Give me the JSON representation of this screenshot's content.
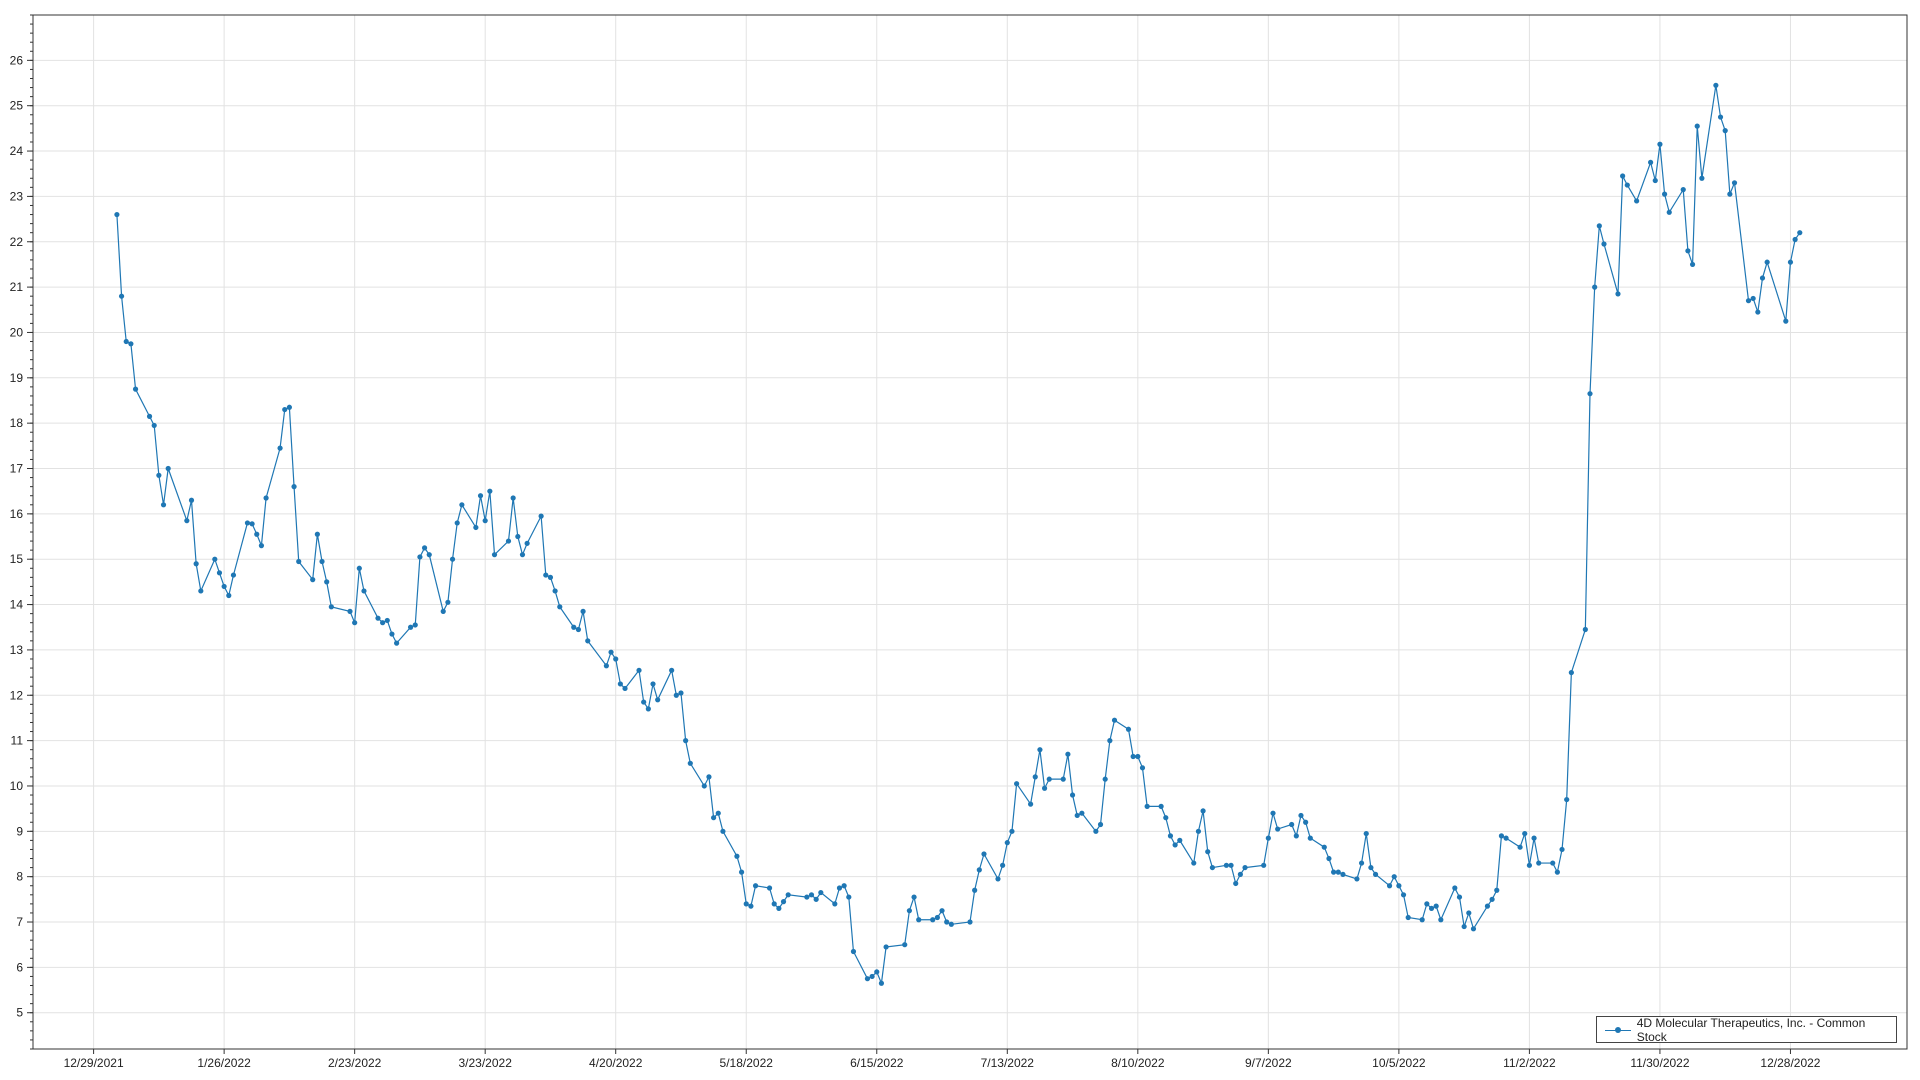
{
  "chart_data": {
    "type": "line",
    "title": "",
    "xlabel": "",
    "ylabel": "",
    "ylim": [
      4.2,
      27
    ],
    "yticks": [
      5,
      6,
      7,
      8,
      9,
      10,
      11,
      12,
      13,
      14,
      15,
      16,
      17,
      18,
      19,
      20,
      21,
      22,
      23,
      24,
      25,
      26
    ],
    "xlim": [
      "2021-12-16",
      "2023-01-22"
    ],
    "xtick_labels": [
      "12/29/2021",
      "1/26/2022",
      "2/23/2022",
      "3/23/2022",
      "4/20/2022",
      "5/18/2022",
      "6/15/2022",
      "7/13/2022",
      "8/10/2022",
      "9/7/2022",
      "10/5/2022",
      "11/2/2022",
      "11/30/2022",
      "12/28/2022"
    ],
    "grid": true,
    "legend_placement": "bottom-right",
    "color": "#1f77b4",
    "series": [
      {
        "name": "4D Molecular Therapeutics, Inc. - Common Stock",
        "points": [
          [
            "2022-01-03",
            22.6
          ],
          [
            "2022-01-04",
            20.8
          ],
          [
            "2022-01-05",
            19.8
          ],
          [
            "2022-01-06",
            19.75
          ],
          [
            "2022-01-07",
            18.75
          ],
          [
            "2022-01-10",
            18.15
          ],
          [
            "2022-01-11",
            17.95
          ],
          [
            "2022-01-12",
            16.85
          ],
          [
            "2022-01-13",
            16.2
          ],
          [
            "2022-01-14",
            17.0
          ],
          [
            "2022-01-18",
            15.85
          ],
          [
            "2022-01-19",
            16.3
          ],
          [
            "2022-01-20",
            14.9
          ],
          [
            "2022-01-21",
            14.3
          ],
          [
            "2022-01-24",
            15.0
          ],
          [
            "2022-01-25",
            14.7
          ],
          [
            "2022-01-26",
            14.4
          ],
          [
            "2022-01-27",
            14.2
          ],
          [
            "2022-01-28",
            14.65
          ],
          [
            "2022-01-31",
            15.8
          ],
          [
            "2022-02-01",
            15.78
          ],
          [
            "2022-02-02",
            15.55
          ],
          [
            "2022-02-03",
            15.3
          ],
          [
            "2022-02-04",
            16.35
          ],
          [
            "2022-02-07",
            17.45
          ],
          [
            "2022-02-08",
            18.3
          ],
          [
            "2022-02-09",
            18.35
          ],
          [
            "2022-02-10",
            16.6
          ],
          [
            "2022-02-11",
            14.95
          ],
          [
            "2022-02-14",
            14.55
          ],
          [
            "2022-02-15",
            15.55
          ],
          [
            "2022-02-16",
            14.95
          ],
          [
            "2022-02-17",
            14.5
          ],
          [
            "2022-02-18",
            13.95
          ],
          [
            "2022-02-22",
            13.85
          ],
          [
            "2022-02-23",
            13.6
          ],
          [
            "2022-02-24",
            14.8
          ],
          [
            "2022-02-25",
            14.3
          ],
          [
            "2022-02-28",
            13.7
          ],
          [
            "2022-03-01",
            13.6
          ],
          [
            "2022-03-02",
            13.65
          ],
          [
            "2022-03-03",
            13.35
          ],
          [
            "2022-03-04",
            13.15
          ],
          [
            "2022-03-07",
            13.5
          ],
          [
            "2022-03-08",
            13.55
          ],
          [
            "2022-03-09",
            15.05
          ],
          [
            "2022-03-10",
            15.25
          ],
          [
            "2022-03-11",
            15.1
          ],
          [
            "2022-03-14",
            13.85
          ],
          [
            "2022-03-15",
            14.05
          ],
          [
            "2022-03-16",
            15.0
          ],
          [
            "2022-03-17",
            15.8
          ],
          [
            "2022-03-18",
            16.2
          ],
          [
            "2022-03-21",
            15.7
          ],
          [
            "2022-03-22",
            16.4
          ],
          [
            "2022-03-23",
            15.85
          ],
          [
            "2022-03-24",
            16.5
          ],
          [
            "2022-03-25",
            15.1
          ],
          [
            "2022-03-28",
            15.4
          ],
          [
            "2022-03-29",
            16.35
          ],
          [
            "2022-03-30",
            15.5
          ],
          [
            "2022-03-31",
            15.1
          ],
          [
            "2022-04-01",
            15.35
          ],
          [
            "2022-04-04",
            15.95
          ],
          [
            "2022-04-05",
            14.65
          ],
          [
            "2022-04-06",
            14.6
          ],
          [
            "2022-04-07",
            14.3
          ],
          [
            "2022-04-08",
            13.95
          ],
          [
            "2022-04-11",
            13.5
          ],
          [
            "2022-04-12",
            13.45
          ],
          [
            "2022-04-13",
            13.85
          ],
          [
            "2022-04-14",
            13.2
          ],
          [
            "2022-04-18",
            12.65
          ],
          [
            "2022-04-19",
            12.95
          ],
          [
            "2022-04-20",
            12.8
          ],
          [
            "2022-04-21",
            12.25
          ],
          [
            "2022-04-22",
            12.15
          ],
          [
            "2022-04-25",
            12.55
          ],
          [
            "2022-04-26",
            11.85
          ],
          [
            "2022-04-27",
            11.7
          ],
          [
            "2022-04-28",
            12.25
          ],
          [
            "2022-04-29",
            11.9
          ],
          [
            "2022-05-02",
            12.55
          ],
          [
            "2022-05-03",
            12.0
          ],
          [
            "2022-05-04",
            12.05
          ],
          [
            "2022-05-05",
            11.0
          ],
          [
            "2022-05-06",
            10.5
          ],
          [
            "2022-05-09",
            10.0
          ],
          [
            "2022-05-10",
            10.2
          ],
          [
            "2022-05-11",
            9.3
          ],
          [
            "2022-05-12",
            9.4
          ],
          [
            "2022-05-13",
            9.0
          ],
          [
            "2022-05-16",
            8.45
          ],
          [
            "2022-05-17",
            8.1
          ],
          [
            "2022-05-18",
            7.4
          ],
          [
            "2022-05-19",
            7.35
          ],
          [
            "2022-05-20",
            7.8
          ],
          [
            "2022-05-23",
            7.75
          ],
          [
            "2022-05-24",
            7.4
          ],
          [
            "2022-05-25",
            7.3
          ],
          [
            "2022-05-26",
            7.45
          ],
          [
            "2022-05-27",
            7.6
          ],
          [
            "2022-05-31",
            7.55
          ],
          [
            "2022-06-01",
            7.6
          ],
          [
            "2022-06-02",
            7.5
          ],
          [
            "2022-06-03",
            7.65
          ],
          [
            "2022-06-06",
            7.4
          ],
          [
            "2022-06-07",
            7.75
          ],
          [
            "2022-06-08",
            7.8
          ],
          [
            "2022-06-09",
            7.55
          ],
          [
            "2022-06-10",
            6.35
          ],
          [
            "2022-06-13",
            5.75
          ],
          [
            "2022-06-14",
            5.8
          ],
          [
            "2022-06-15",
            5.9
          ],
          [
            "2022-06-16",
            5.65
          ],
          [
            "2022-06-17",
            6.45
          ],
          [
            "2022-06-21",
            6.5
          ],
          [
            "2022-06-22",
            7.25
          ],
          [
            "2022-06-23",
            7.55
          ],
          [
            "2022-06-24",
            7.05
          ],
          [
            "2022-06-27",
            7.05
          ],
          [
            "2022-06-28",
            7.1
          ],
          [
            "2022-06-29",
            7.25
          ],
          [
            "2022-06-30",
            7.0
          ],
          [
            "2022-07-01",
            6.95
          ],
          [
            "2022-07-05",
            7.0
          ],
          [
            "2022-07-06",
            7.7
          ],
          [
            "2022-07-07",
            8.15
          ],
          [
            "2022-07-08",
            8.5
          ],
          [
            "2022-07-11",
            7.95
          ],
          [
            "2022-07-12",
            8.25
          ],
          [
            "2022-07-13",
            8.75
          ],
          [
            "2022-07-14",
            9.0
          ],
          [
            "2022-07-15",
            10.05
          ],
          [
            "2022-07-18",
            9.6
          ],
          [
            "2022-07-19",
            10.2
          ],
          [
            "2022-07-20",
            10.8
          ],
          [
            "2022-07-21",
            9.95
          ],
          [
            "2022-07-22",
            10.15
          ],
          [
            "2022-07-25",
            10.15
          ],
          [
            "2022-07-26",
            10.7
          ],
          [
            "2022-07-27",
            9.8
          ],
          [
            "2022-07-28",
            9.35
          ],
          [
            "2022-07-29",
            9.4
          ],
          [
            "2022-08-01",
            9.0
          ],
          [
            "2022-08-02",
            9.15
          ],
          [
            "2022-08-03",
            10.15
          ],
          [
            "2022-08-04",
            11.0
          ],
          [
            "2022-08-05",
            11.45
          ],
          [
            "2022-08-08",
            11.25
          ],
          [
            "2022-08-09",
            10.65
          ],
          [
            "2022-08-10",
            10.65
          ],
          [
            "2022-08-11",
            10.4
          ],
          [
            "2022-08-12",
            9.55
          ],
          [
            "2022-08-15",
            9.55
          ],
          [
            "2022-08-16",
            9.3
          ],
          [
            "2022-08-17",
            8.9
          ],
          [
            "2022-08-18",
            8.7
          ],
          [
            "2022-08-19",
            8.8
          ],
          [
            "2022-08-22",
            8.3
          ],
          [
            "2022-08-23",
            9.0
          ],
          [
            "2022-08-24",
            9.45
          ],
          [
            "2022-08-25",
            8.55
          ],
          [
            "2022-08-26",
            8.2
          ],
          [
            "2022-08-29",
            8.25
          ],
          [
            "2022-08-30",
            8.25
          ],
          [
            "2022-08-31",
            7.85
          ],
          [
            "2022-09-01",
            8.05
          ],
          [
            "2022-09-02",
            8.2
          ],
          [
            "2022-09-06",
            8.25
          ],
          [
            "2022-09-07",
            8.85
          ],
          [
            "2022-09-08",
            9.4
          ],
          [
            "2022-09-09",
            9.05
          ],
          [
            "2022-09-12",
            9.15
          ],
          [
            "2022-09-13",
            8.9
          ],
          [
            "2022-09-14",
            9.35
          ],
          [
            "2022-09-15",
            9.2
          ],
          [
            "2022-09-16",
            8.85
          ],
          [
            "2022-09-19",
            8.65
          ],
          [
            "2022-09-20",
            8.4
          ],
          [
            "2022-09-21",
            8.1
          ],
          [
            "2022-09-22",
            8.1
          ],
          [
            "2022-09-23",
            8.05
          ],
          [
            "2022-09-26",
            7.95
          ],
          [
            "2022-09-27",
            8.3
          ],
          [
            "2022-09-28",
            8.95
          ],
          [
            "2022-09-29",
            8.2
          ],
          [
            "2022-09-30",
            8.05
          ],
          [
            "2022-10-03",
            7.8
          ],
          [
            "2022-10-04",
            8.0
          ],
          [
            "2022-10-05",
            7.8
          ],
          [
            "2022-10-06",
            7.6
          ],
          [
            "2022-10-07",
            7.1
          ],
          [
            "2022-10-10",
            7.05
          ],
          [
            "2022-10-11",
            7.4
          ],
          [
            "2022-10-12",
            7.3
          ],
          [
            "2022-10-13",
            7.35
          ],
          [
            "2022-10-14",
            7.05
          ],
          [
            "2022-10-17",
            7.75
          ],
          [
            "2022-10-18",
            7.55
          ],
          [
            "2022-10-19",
            6.9
          ],
          [
            "2022-10-20",
            7.2
          ],
          [
            "2022-10-21",
            6.85
          ],
          [
            "2022-10-24",
            7.35
          ],
          [
            "2022-10-25",
            7.5
          ],
          [
            "2022-10-26",
            7.7
          ],
          [
            "2022-10-27",
            8.9
          ],
          [
            "2022-10-28",
            8.85
          ],
          [
            "2022-10-31",
            8.65
          ],
          [
            "2022-11-01",
            8.95
          ],
          [
            "2022-11-02",
            8.25
          ],
          [
            "2022-11-03",
            8.85
          ],
          [
            "2022-11-04",
            8.3
          ],
          [
            "2022-11-07",
            8.3
          ],
          [
            "2022-11-08",
            8.1
          ],
          [
            "2022-11-09",
            8.6
          ],
          [
            "2022-11-10",
            9.7
          ],
          [
            "2022-11-11",
            12.5
          ],
          [
            "2022-11-14",
            13.45
          ],
          [
            "2022-11-15",
            18.65
          ],
          [
            "2022-11-16",
            21.0
          ],
          [
            "2022-11-17",
            22.35
          ],
          [
            "2022-11-18",
            21.95
          ],
          [
            "2022-11-21",
            20.85
          ],
          [
            "2022-11-22",
            23.45
          ],
          [
            "2022-11-23",
            23.25
          ],
          [
            "2022-11-25",
            22.9
          ],
          [
            "2022-11-28",
            23.75
          ],
          [
            "2022-11-29",
            23.35
          ],
          [
            "2022-11-30",
            24.15
          ],
          [
            "2022-12-01",
            23.05
          ],
          [
            "2022-12-02",
            22.65
          ],
          [
            "2022-12-05",
            23.15
          ],
          [
            "2022-12-06",
            21.8
          ],
          [
            "2022-12-07",
            21.5
          ],
          [
            "2022-12-08",
            24.55
          ],
          [
            "2022-12-09",
            23.4
          ],
          [
            "2022-12-12",
            25.45
          ],
          [
            "2022-12-13",
            24.75
          ],
          [
            "2022-12-14",
            24.45
          ],
          [
            "2022-12-15",
            23.05
          ],
          [
            "2022-12-16",
            23.3
          ],
          [
            "2022-12-19",
            20.7
          ],
          [
            "2022-12-20",
            20.75
          ],
          [
            "2022-12-21",
            20.45
          ],
          [
            "2022-12-22",
            21.2
          ],
          [
            "2022-12-23",
            21.55
          ],
          [
            "2022-12-27",
            20.25
          ],
          [
            "2022-12-28",
            21.55
          ],
          [
            "2022-12-29",
            22.05
          ],
          [
            "2022-12-30",
            22.2
          ]
        ]
      }
    ]
  }
}
